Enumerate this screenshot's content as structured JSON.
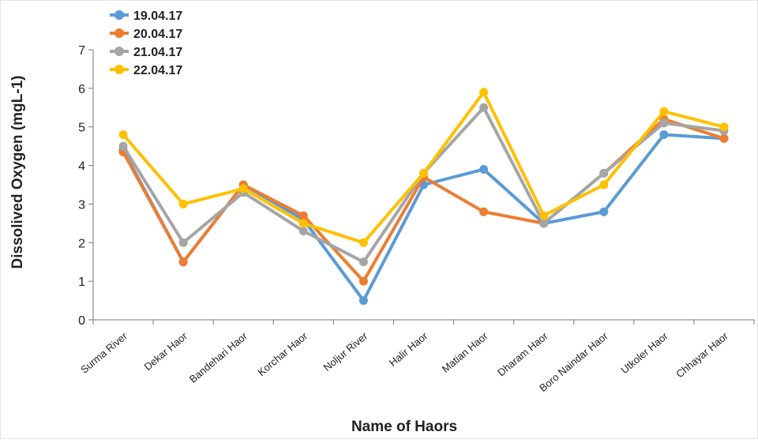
{
  "chart_data": {
    "type": "line",
    "title": "",
    "xlabel": "Name of Haors",
    "ylabel": "Dissolived Oxygen (mgL-1)",
    "ylim": [
      0,
      7
    ],
    "yticks": [
      0,
      1,
      2,
      3,
      4,
      5,
      6,
      7
    ],
    "grid": false,
    "legend_position": "top-left",
    "categories": [
      "Surma River",
      "Dekar Haor",
      "Bandehari Haor",
      "Korchar Haor",
      "Noljur River",
      "Halir Haor",
      "Matian Haor",
      "Dharam Haor",
      "Boro Naindar Haor",
      "Utkoler Haor",
      "Chhayar Haor"
    ],
    "series": [
      {
        "name": "19.04.17",
        "color": "#5b9bd5",
        "values": [
          4.4,
          1.5,
          3.5,
          2.6,
          0.5,
          3.5,
          3.9,
          2.5,
          2.8,
          4.8,
          4.7
        ]
      },
      {
        "name": "20.04.17",
        "color": "#ed7d31",
        "values": [
          4.35,
          1.5,
          3.5,
          2.7,
          1.0,
          3.7,
          2.8,
          2.5,
          3.8,
          5.2,
          4.7
        ]
      },
      {
        "name": "21.04.17",
        "color": "#a5a5a5",
        "values": [
          4.5,
          2.0,
          3.3,
          2.3,
          1.5,
          3.8,
          5.5,
          2.5,
          3.8,
          5.1,
          4.9
        ]
      },
      {
        "name": "22.04.17",
        "color": "#ffc000",
        "values": [
          4.8,
          3.0,
          3.4,
          2.5,
          2.0,
          3.8,
          5.9,
          2.7,
          3.5,
          5.4,
          5.0
        ]
      }
    ]
  }
}
